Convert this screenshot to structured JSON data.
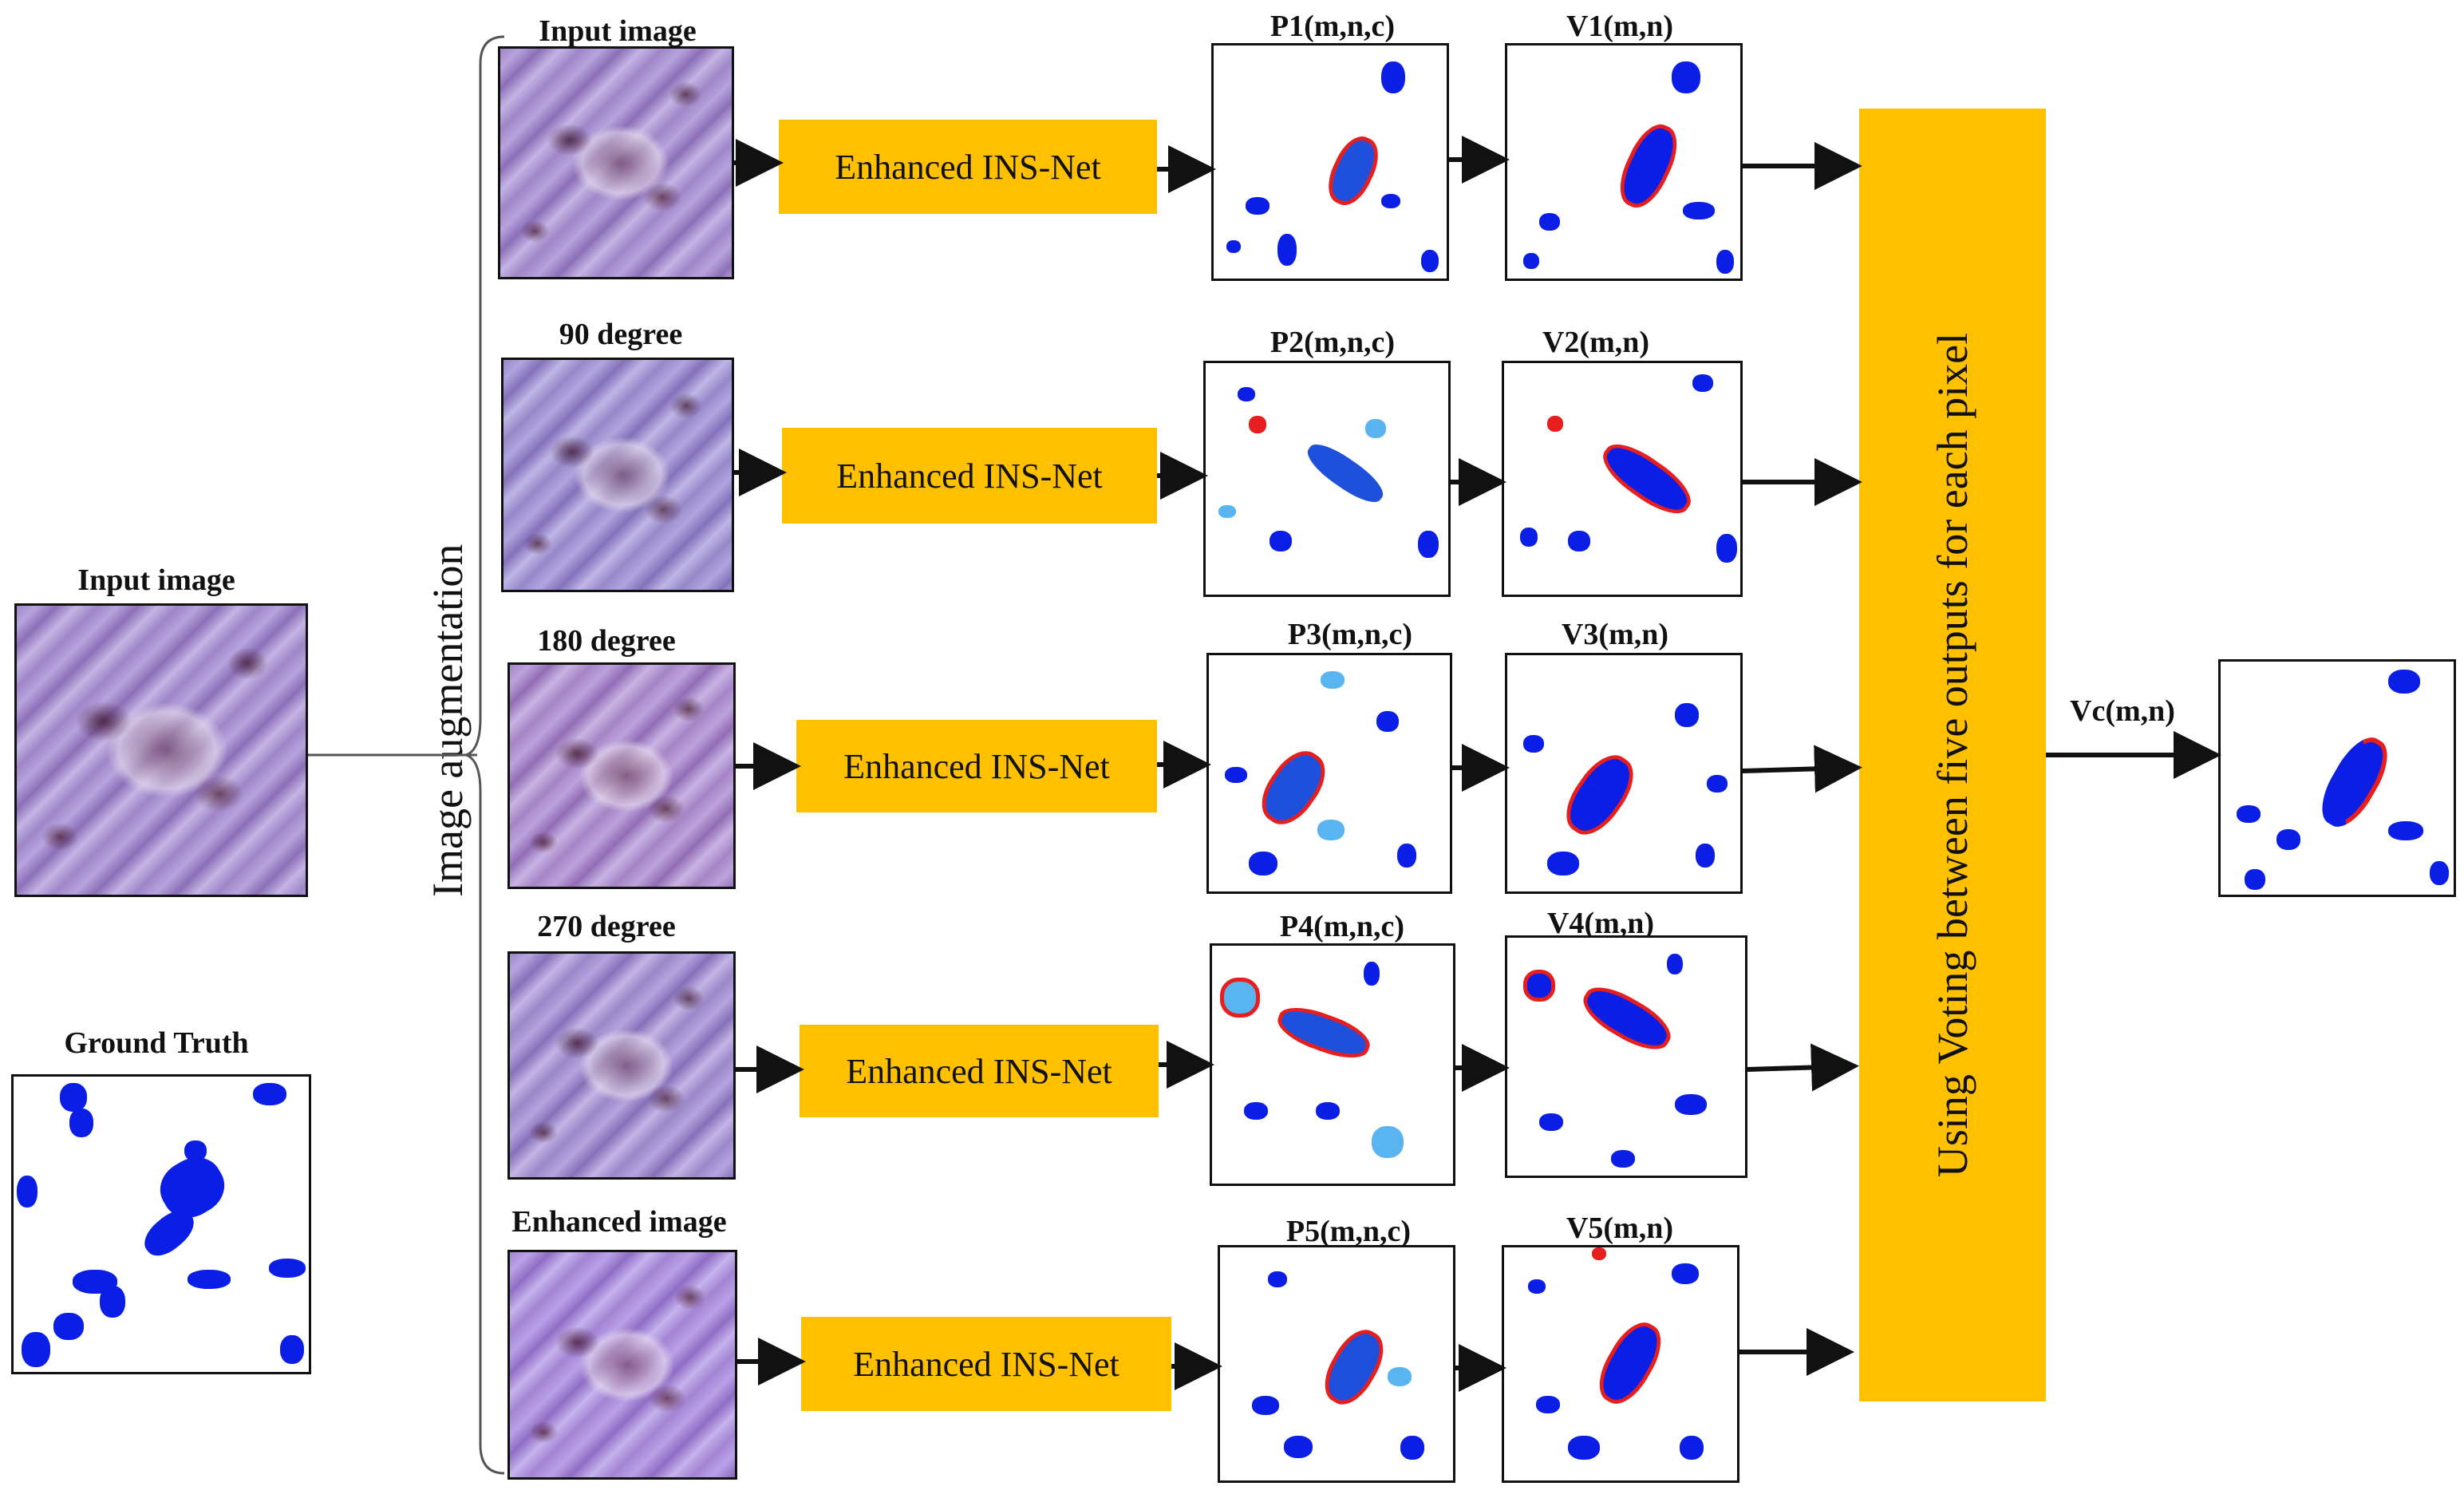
{
  "left": {
    "input_label": "Input image",
    "gt_label": "Ground Truth"
  },
  "augmentation_label": "Image  augmentation",
  "rows": [
    {
      "source_label": "Input image",
      "net_label": "Enhanced INS-Net",
      "p_label": "P1(m,n,c)",
      "v_label": "V1(m,n)"
    },
    {
      "source_label": "90 degree",
      "net_label": "Enhanced INS-Net",
      "p_label": "P2(m,n,c)",
      "v_label": "V2(m,n)"
    },
    {
      "source_label": "180 degree",
      "net_label": "Enhanced INS-Net",
      "p_label": "P3(m,n,c)",
      "v_label": "V3(m,n)"
    },
    {
      "source_label": "270 degree",
      "net_label": "Enhanced INS-Net",
      "p_label": "P4(m,n,c)",
      "v_label": "V4(m,n)"
    },
    {
      "source_label": "Enhanced image",
      "net_label": "Enhanced INS-Net",
      "p_label": "P5(m,n,c)",
      "v_label": "V5(m,n)"
    }
  ],
  "voting_label": "Using Voting between five outputs for each pixel",
  "output_label": "Vc(m,n)",
  "colors": {
    "block": "#ffc000",
    "segment": "#0a1ee6",
    "light_segment": "#5ab4f0",
    "boundary": "#e61e1e"
  }
}
